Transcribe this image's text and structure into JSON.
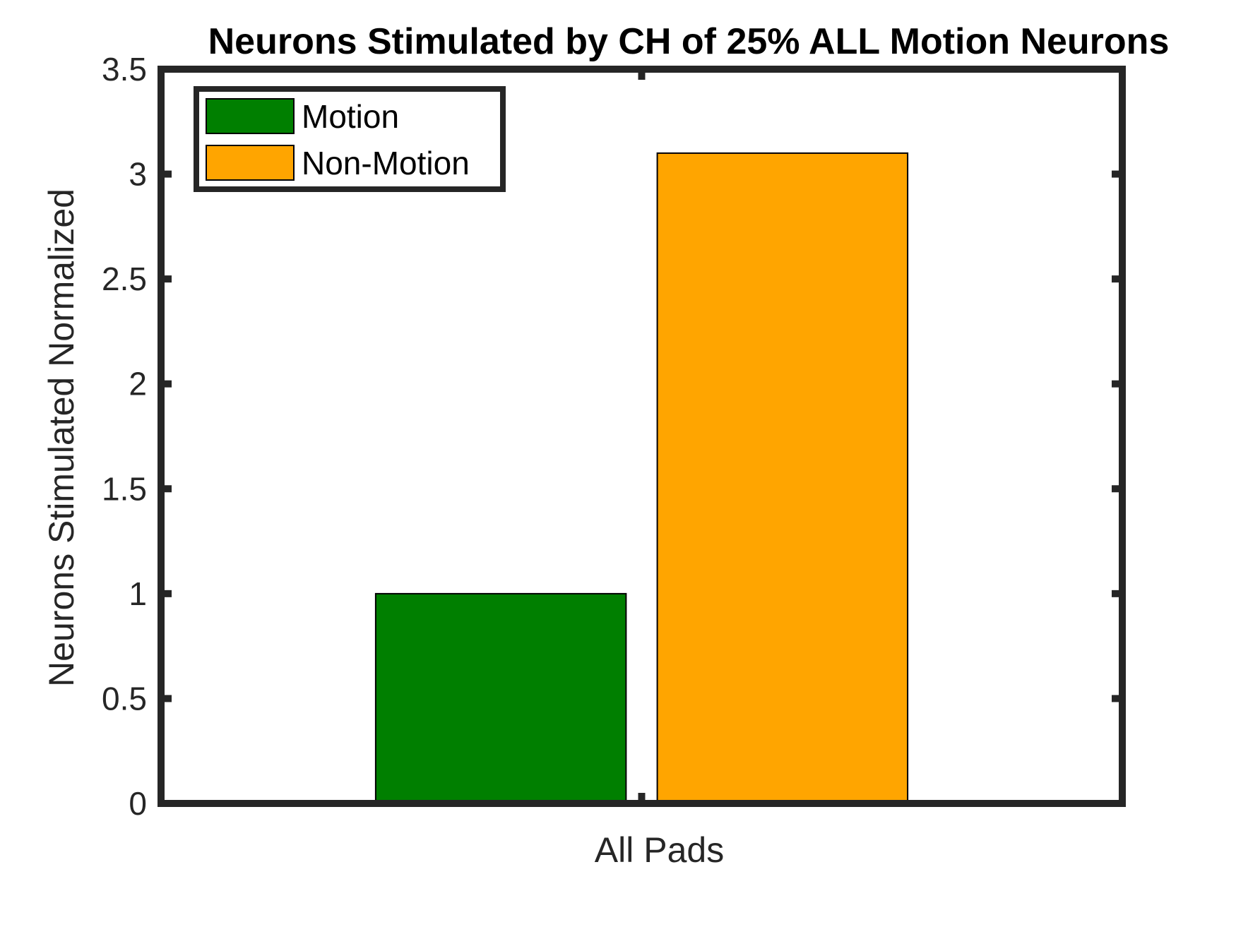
{
  "chart_data": {
    "type": "bar",
    "title": "Neurons Stimulated by CH of 25% ALL Motion Neurons",
    "xlabel": "",
    "ylabel": "Neurons Stimulated Normalized",
    "categories": [
      "All Pads"
    ],
    "series": [
      {
        "name": "Motion",
        "values": [
          1.0
        ],
        "color": "#007f00"
      },
      {
        "name": "Non-Motion",
        "values": [
          3.1
        ],
        "color": "#ffa500"
      }
    ],
    "ylim": [
      0,
      3.5
    ],
    "yticks": [
      "0",
      "0.5",
      "1",
      "1.5",
      "2",
      "2.5",
      "3",
      "3.5"
    ],
    "grid": false,
    "legend_position": "top-left",
    "axis_color": "#262626"
  }
}
